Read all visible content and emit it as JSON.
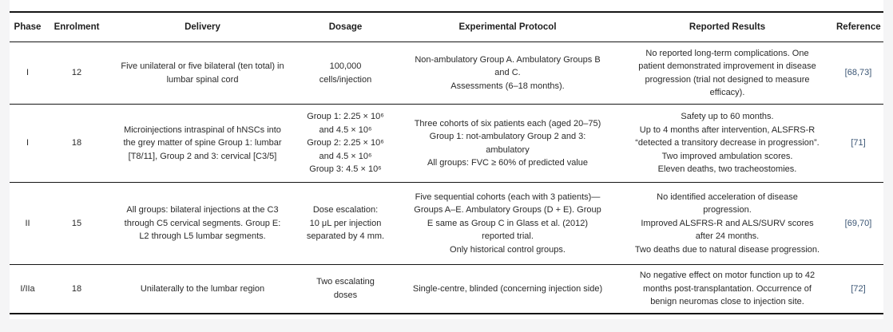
{
  "colors": {
    "page_background": "#f5f5f6",
    "card_background": "#ffffff",
    "rule": "#161616",
    "text": "#2a2a2a",
    "reference_link": "#3a5574"
  },
  "table": {
    "columns": [
      {
        "id": "phase",
        "label": "Phase"
      },
      {
        "id": "enrolment",
        "label": "Enrolment"
      },
      {
        "id": "delivery",
        "label": "Delivery"
      },
      {
        "id": "dosage",
        "label": "Dosage"
      },
      {
        "id": "protocol",
        "label": "Experimental Protocol"
      },
      {
        "id": "results",
        "label": "Reported Results"
      },
      {
        "id": "reference",
        "label": "Reference"
      }
    ],
    "rows": [
      {
        "phase": "I",
        "enrolment": "12",
        "delivery": "Five unilateral or five bilateral (ten total) in\nlumbar spinal cord",
        "dosage": "100,000\ncells/injection",
        "protocol": "Non-ambulatory Group A. Ambulatory Groups B\nand C.\nAssessments (6–18 months).",
        "results": "No reported long-term complications. One\npatient demonstrated improvement in disease\nprogression (trial not designed to measure\nefficacy).",
        "reference": "[68,73]"
      },
      {
        "phase": "I",
        "enrolment": "18",
        "delivery": "Microinjections intraspinal of hNSCs into\nthe grey matter of spine Group 1: lumbar\n[T8/11], Group 2 and 3: cervical [C3/5]",
        "dosage": "Group 1: 2.25 × 10⁶\nand 4.5 × 10⁶\nGroup 2: 2.25 × 10⁶\nand 4.5 × 10⁶\nGroup 3: 4.5 × 10⁶",
        "protocol": "Three cohorts of six patients each (aged 20–75)\nGroup 1: not-ambulatory Group 2 and 3:\nambulatory\nAll groups: FVC ≥ 60% of predicted value",
        "results": "Safety up to 60 months.\nUp to 4 months after intervention, ALSFRS-R\n“detected a transitory decrease in progression”.\nTwo improved ambulation scores.\nEleven deaths, two tracheostomies.",
        "reference": "[71]"
      },
      {
        "phase": "II",
        "enrolment": "15",
        "delivery": "All groups: bilateral injections at the C3\nthrough C5 cervical segments. Group E:\nL2 through L5 lumbar segments.",
        "dosage": "Dose escalation:\n10 μL per injection\nseparated by 4 mm.",
        "protocol": "Five sequential cohorts (each with 3 patients)—\nGroups A–E. Ambulatory Groups (D + E). Group\nE same as Group C in Glass et al. (2012)\nreported trial.\nOnly historical control groups.",
        "results": "No identified acceleration of disease\nprogression.\nImproved ALSFRS-R and ALS/SURV scores\nafter 24 months.\nTwo deaths due to natural disease progression.",
        "reference": "[69,70]"
      },
      {
        "phase": "I/IIa",
        "enrolment": "18",
        "delivery": "Unilaterally to the lumbar region",
        "dosage": "Two escalating\ndoses",
        "protocol": "Single-centre, blinded (concerning injection side)",
        "results": "No negative effect on motor function up to 42\nmonths post-transplantation. Occurrence of\nbenign neuromas close to injection site.",
        "reference": "[72]"
      }
    ]
  }
}
